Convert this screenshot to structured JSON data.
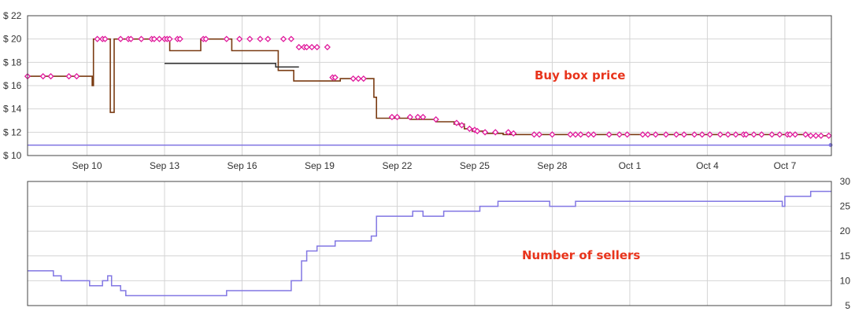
{
  "colors": {
    "buybox_line": "#7a3b12",
    "buybox_marker": "#e0199b",
    "seller_line": "#8277e3",
    "other_line": "#333333",
    "annotation": "#e8341c",
    "grid": "#d4d4d4",
    "frame": "#333333"
  },
  "chart_data": [
    {
      "type": "line",
      "annotation": "Buy box price",
      "x_tick_labels": [
        "Sep 10",
        "Sep 13",
        "Sep 16",
        "Sep 19",
        "Sep 22",
        "Sep 25",
        "Sep 28",
        "Oct 1",
        "Oct 4",
        "Oct 7"
      ],
      "y_tick_labels": [
        "$ 10",
        "$ 12",
        "$ 14",
        "$ 16",
        "$ 18",
        "$ 20",
        "$ 22"
      ],
      "ylim": [
        10,
        22
      ],
      "xlim_days": [
        7.7,
        38.8
      ],
      "grid": true,
      "series": [
        {
          "role": "buy-box-price",
          "style": "step",
          "points": [
            [
              7.7,
              16.8
            ],
            [
              10.2,
              16.8
            ],
            [
              10.2,
              16.0
            ],
            [
              10.25,
              16.0
            ],
            [
              10.25,
              20.0
            ],
            [
              10.9,
              20.0
            ],
            [
              10.9,
              13.7
            ],
            [
              11.05,
              13.7
            ],
            [
              11.05,
              20.0
            ],
            [
              13.2,
              20.0
            ],
            [
              13.2,
              19.0
            ],
            [
              14.4,
              19.0
            ],
            [
              14.4,
              20.0
            ],
            [
              15.6,
              20.0
            ],
            [
              15.6,
              19.0
            ],
            [
              17.4,
              19.0
            ],
            [
              17.4,
              17.3
            ],
            [
              18.0,
              17.3
            ],
            [
              18.0,
              16.4
            ],
            [
              19.8,
              16.4
            ],
            [
              19.8,
              16.6
            ],
            [
              21.1,
              16.6
            ],
            [
              21.1,
              15.0
            ],
            [
              21.2,
              15.0
            ],
            [
              21.2,
              13.2
            ],
            [
              22.5,
              13.2
            ],
            [
              22.5,
              13.1
            ],
            [
              23.5,
              13.1
            ],
            [
              23.5,
              12.9
            ],
            [
              24.2,
              12.9
            ],
            [
              24.2,
              12.7
            ],
            [
              24.6,
              12.7
            ],
            [
              24.6,
              12.3
            ],
            [
              24.9,
              12.3
            ],
            [
              24.9,
              12.1
            ],
            [
              25.4,
              12.1
            ],
            [
              25.4,
              11.9
            ],
            [
              26.1,
              11.9
            ],
            [
              26.1,
              11.8
            ],
            [
              38.0,
              11.8
            ],
            [
              38.0,
              11.7
            ],
            [
              38.8,
              11.7
            ]
          ]
        },
        {
          "role": "buy-box-price-markers",
          "style": "markers",
          "points": [
            [
              7.7,
              16.8
            ],
            [
              8.3,
              16.8
            ],
            [
              8.6,
              16.8
            ],
            [
              9.3,
              16.8
            ],
            [
              9.6,
              16.8
            ],
            [
              10.4,
              20.0
            ],
            [
              10.6,
              20.0
            ],
            [
              10.7,
              20.0
            ],
            [
              11.3,
              20.0
            ],
            [
              11.6,
              20.0
            ],
            [
              11.7,
              20.0
            ],
            [
              12.1,
              20.0
            ],
            [
              12.5,
              20.0
            ],
            [
              12.6,
              20.0
            ],
            [
              12.8,
              20.0
            ],
            [
              13.0,
              20.0
            ],
            [
              13.1,
              20.0
            ],
            [
              13.2,
              20.0
            ],
            [
              13.5,
              20.0
            ],
            [
              13.6,
              20.0
            ],
            [
              14.5,
              20.0
            ],
            [
              14.6,
              20.0
            ],
            [
              15.4,
              20.0
            ],
            [
              15.9,
              20.0
            ],
            [
              16.3,
              20.0
            ],
            [
              16.7,
              20.0
            ],
            [
              17.0,
              20.0
            ],
            [
              17.6,
              20.0
            ],
            [
              17.9,
              20.0
            ],
            [
              18.2,
              19.3
            ],
            [
              18.4,
              19.3
            ],
            [
              18.5,
              19.3
            ],
            [
              18.7,
              19.3
            ],
            [
              18.9,
              19.3
            ],
            [
              19.3,
              19.3
            ],
            [
              19.5,
              16.7
            ],
            [
              19.6,
              16.7
            ],
            [
              20.3,
              16.6
            ],
            [
              20.5,
              16.6
            ],
            [
              20.7,
              16.6
            ],
            [
              21.8,
              13.3
            ],
            [
              22.0,
              13.3
            ],
            [
              22.5,
              13.3
            ],
            [
              22.8,
              13.3
            ],
            [
              23.0,
              13.3
            ],
            [
              23.5,
              13.1
            ],
            [
              24.3,
              12.8
            ],
            [
              24.5,
              12.6
            ],
            [
              24.8,
              12.3
            ],
            [
              25.0,
              12.2
            ],
            [
              25.1,
              12.1
            ],
            [
              25.4,
              12.0
            ],
            [
              25.8,
              12.0
            ],
            [
              26.3,
              12.0
            ],
            [
              26.5,
              11.9
            ],
            [
              27.3,
              11.8
            ],
            [
              27.5,
              11.8
            ],
            [
              28.0,
              11.8
            ],
            [
              28.7,
              11.8
            ],
            [
              28.9,
              11.8
            ],
            [
              29.1,
              11.8
            ],
            [
              29.4,
              11.8
            ],
            [
              29.6,
              11.8
            ],
            [
              30.2,
              11.8
            ],
            [
              30.6,
              11.8
            ],
            [
              30.9,
              11.8
            ],
            [
              31.5,
              11.8
            ],
            [
              31.7,
              11.8
            ],
            [
              32.0,
              11.8
            ],
            [
              32.4,
              11.8
            ],
            [
              32.8,
              11.8
            ],
            [
              33.1,
              11.8
            ],
            [
              33.5,
              11.8
            ],
            [
              33.8,
              11.8
            ],
            [
              34.1,
              11.8
            ],
            [
              34.5,
              11.8
            ],
            [
              34.8,
              11.8
            ],
            [
              35.1,
              11.8
            ],
            [
              35.4,
              11.8
            ],
            [
              35.5,
              11.8
            ],
            [
              35.8,
              11.8
            ],
            [
              36.1,
              11.8
            ],
            [
              36.5,
              11.8
            ],
            [
              36.8,
              11.8
            ],
            [
              37.1,
              11.8
            ],
            [
              37.2,
              11.8
            ],
            [
              37.4,
              11.8
            ],
            [
              37.8,
              11.8
            ],
            [
              38.0,
              11.7
            ],
            [
              38.2,
              11.7
            ],
            [
              38.4,
              11.7
            ],
            [
              38.7,
              11.7
            ]
          ]
        },
        {
          "role": "other-price",
          "style": "step",
          "points": [
            [
              13.0,
              17.9
            ],
            [
              17.3,
              17.9
            ],
            [
              17.3,
              17.6
            ],
            [
              18.2,
              17.6
            ]
          ]
        },
        {
          "role": "lowest-price",
          "style": "line",
          "points": [
            [
              7.7,
              10.9
            ],
            [
              38.8,
              10.9
            ]
          ]
        }
      ]
    },
    {
      "type": "line",
      "annotation": "Number of sellers",
      "y_tick_labels": [
        "5",
        "10",
        "15",
        "20",
        "25",
        "30"
      ],
      "ylim": [
        5,
        30
      ],
      "xlim_days": [
        7.7,
        38.8
      ],
      "grid": true,
      "series": [
        {
          "role": "seller-count",
          "style": "step",
          "points": [
            [
              7.7,
              12
            ],
            [
              8.7,
              12
            ],
            [
              8.7,
              11
            ],
            [
              9.0,
              11
            ],
            [
              9.0,
              10
            ],
            [
              10.1,
              10
            ],
            [
              10.1,
              9
            ],
            [
              10.6,
              9
            ],
            [
              10.6,
              10
            ],
            [
              10.8,
              10
            ],
            [
              10.8,
              11
            ],
            [
              10.95,
              11
            ],
            [
              10.95,
              9
            ],
            [
              11.3,
              9
            ],
            [
              11.3,
              8
            ],
            [
              11.5,
              8
            ],
            [
              11.5,
              7
            ],
            [
              15.4,
              7
            ],
            [
              15.4,
              8
            ],
            [
              17.9,
              8
            ],
            [
              17.9,
              10
            ],
            [
              18.3,
              10
            ],
            [
              18.3,
              14
            ],
            [
              18.5,
              14
            ],
            [
              18.5,
              16
            ],
            [
              18.9,
              16
            ],
            [
              18.9,
              17
            ],
            [
              19.6,
              17
            ],
            [
              19.6,
              18
            ],
            [
              21.0,
              18
            ],
            [
              21.0,
              19
            ],
            [
              21.2,
              19
            ],
            [
              21.2,
              23
            ],
            [
              22.6,
              23
            ],
            [
              22.6,
              24
            ],
            [
              23.0,
              24
            ],
            [
              23.0,
              23
            ],
            [
              23.8,
              23
            ],
            [
              23.8,
              24
            ],
            [
              25.2,
              24
            ],
            [
              25.2,
              25
            ],
            [
              25.9,
              25
            ],
            [
              25.9,
              26
            ],
            [
              27.9,
              26
            ],
            [
              27.9,
              25
            ],
            [
              28.9,
              25
            ],
            [
              28.9,
              26
            ],
            [
              36.9,
              26
            ],
            [
              36.9,
              25
            ],
            [
              37.0,
              25
            ],
            [
              37.0,
              27
            ],
            [
              38.0,
              27
            ],
            [
              38.0,
              28
            ],
            [
              38.8,
              28
            ]
          ]
        }
      ]
    }
  ]
}
